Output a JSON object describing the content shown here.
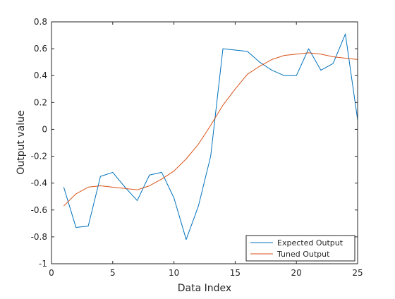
{
  "chart_data": {
    "type": "line",
    "title": "",
    "xlabel": "Data Index",
    "ylabel": "Output value",
    "xlim": [
      0,
      25
    ],
    "ylim": [
      -1,
      0.8
    ],
    "xticks": [
      0,
      5,
      10,
      15,
      20,
      25
    ],
    "xtick_labels": [
      "0",
      "5",
      "10",
      "15",
      "20",
      "25"
    ],
    "yticks": [
      -1,
      -0.8,
      -0.6,
      -0.4,
      -0.2,
      0,
      0.2,
      0.4,
      0.6,
      0.8
    ],
    "ytick_labels": [
      "-1",
      "-0.8",
      "-0.6",
      "-0.4",
      "-0.2",
      "0",
      "0.2",
      "0.4",
      "0.6",
      "0.8"
    ],
    "grid": false,
    "legend_position": "bottom-right",
    "x": [
      1,
      2,
      3,
      4,
      5,
      6,
      7,
      8,
      9,
      10,
      11,
      12,
      13,
      14,
      15,
      16,
      17,
      18,
      19,
      20,
      21,
      22,
      23,
      24,
      25
    ],
    "series": [
      {
        "name": "Expected Output",
        "color": "#0072BD",
        "values": [
          -0.43,
          -0.73,
          -0.72,
          -0.35,
          -0.32,
          -0.43,
          -0.53,
          -0.34,
          -0.32,
          -0.51,
          -0.82,
          -0.57,
          -0.2,
          0.6,
          0.59,
          0.58,
          0.5,
          0.44,
          0.4,
          0.4,
          0.6,
          0.44,
          0.49,
          0.71,
          0.07
        ]
      },
      {
        "name": "Tuned Output",
        "color": "#D95319",
        "values": [
          -0.57,
          -0.48,
          -0.43,
          -0.42,
          -0.43,
          -0.44,
          -0.45,
          -0.42,
          -0.37,
          -0.31,
          -0.22,
          -0.11,
          0.03,
          0.18,
          0.3,
          0.41,
          0.47,
          0.52,
          0.55,
          0.56,
          0.57,
          0.56,
          0.54,
          0.53,
          0.52
        ]
      }
    ]
  }
}
